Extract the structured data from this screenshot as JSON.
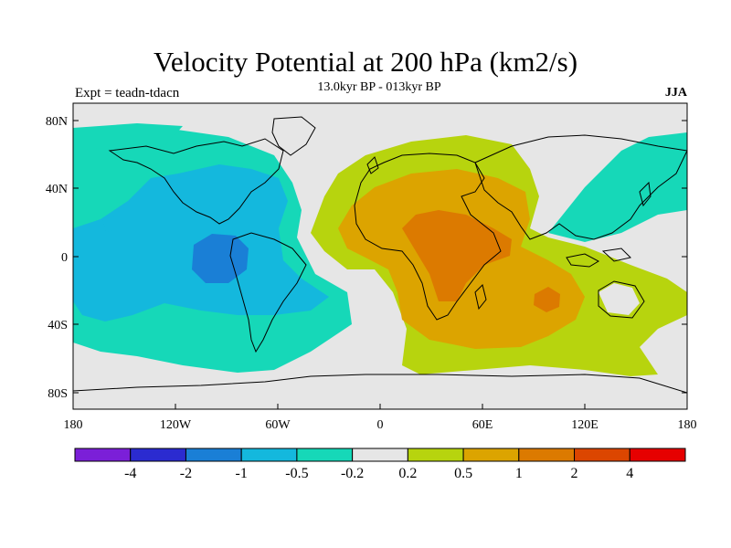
{
  "title": "Velocity Potential at 200 hPa (km2/s)",
  "subtitle": "13.0kyr BP - 013kyr BP",
  "left_label": "Expt = teadn-tdacn",
  "season": "JJA",
  "map": {
    "lat_ticks": [
      "80N",
      "40N",
      "0",
      "40S",
      "80S"
    ],
    "lon_ticks": [
      "180",
      "120W",
      "60W",
      "0",
      "60E",
      "120E",
      "180"
    ],
    "background_color": "#e6e6e6"
  },
  "colorbar": {
    "colors": [
      "#7b1fd8",
      "#2b2bd0",
      "#1a7fd6",
      "#14b8dd",
      "#16d8b8",
      "#e6e6e6",
      "#b7d40e",
      "#dca400",
      "#dc7a00",
      "#dc4600",
      "#e60000"
    ],
    "labels": [
      "-4",
      "-2",
      "-1",
      "-0.5",
      "-0.2",
      "0.2",
      "0.5",
      "1",
      "2",
      "4"
    ]
  }
}
